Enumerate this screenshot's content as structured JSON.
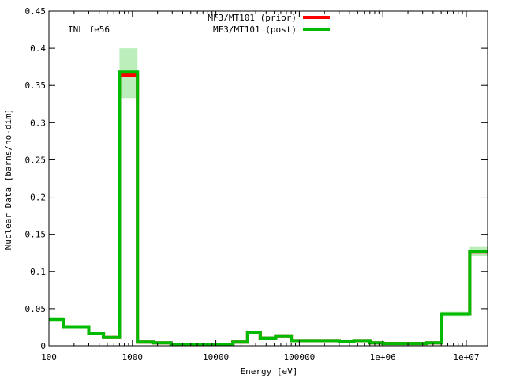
{
  "chart_data": {
    "type": "line",
    "annotation": "INL fe56",
    "xlabel": "Energy [eV]",
    "ylabel": "Nuclear Data [barns/no-dim]",
    "x_scale": "log",
    "xlim": [
      100,
      18000000
    ],
    "ylim": [
      0,
      0.45
    ],
    "x_ticks": [
      {
        "value": 100,
        "label": "100"
      },
      {
        "value": 1000,
        "label": "1000"
      },
      {
        "value": 10000,
        "label": "10000"
      },
      {
        "value": 100000,
        "label": "100000"
      },
      {
        "value": 1000000,
        "label": "1e+06"
      },
      {
        "value": 10000000,
        "label": "1e+07"
      }
    ],
    "y_ticks": [
      {
        "value": 0,
        "label": "0"
      },
      {
        "value": 0.05,
        "label": "0.05"
      },
      {
        "value": 0.1,
        "label": "0.1"
      },
      {
        "value": 0.15,
        "label": "0.15"
      },
      {
        "value": 0.2,
        "label": "0.2"
      },
      {
        "value": 0.25,
        "label": "0.25"
      },
      {
        "value": 0.3,
        "label": "0.3"
      },
      {
        "value": 0.35,
        "label": "0.35"
      },
      {
        "value": 0.4,
        "label": "0.4"
      },
      {
        "value": 0.45,
        "label": "0.45"
      }
    ],
    "grid": false,
    "legend_position": "top-center",
    "bin_edges": [
      100,
      150,
      300,
      450,
      700,
      1150,
      1800,
      2900,
      4500,
      6800,
      11000,
      16000,
      24000,
      34000,
      52000,
      80000,
      120000,
      200000,
      300000,
      450000,
      700000,
      1000000,
      1400000,
      2200000,
      3300000,
      5000000,
      7500000,
      11000000,
      18000000
    ],
    "series": [
      {
        "name": "MF3/MT101 (prior)",
        "color": "#ff0000",
        "values": [
          0.035,
          0.025,
          0.017,
          0.012,
          0.364,
          0.005,
          0.004,
          0.002,
          0.002,
          0.002,
          0.002,
          0.005,
          0.018,
          0.01,
          0.013,
          0.007,
          0.007,
          0.007,
          0.006,
          0.007,
          0.004,
          0.003,
          0.003,
          0.003,
          0.004,
          0.043,
          0.043,
          0.126
        ]
      },
      {
        "name": "MF3/MT101 (post)",
        "color": "#00bb00",
        "band_color": "#bbeebb",
        "values": [
          0.035,
          0.025,
          0.017,
          0.012,
          0.368,
          0.005,
          0.004,
          0.002,
          0.002,
          0.002,
          0.002,
          0.005,
          0.018,
          0.01,
          0.013,
          0.007,
          0.007,
          0.007,
          0.006,
          0.007,
          0.004,
          0.003,
          0.003,
          0.003,
          0.004,
          0.043,
          0.043,
          0.127
        ],
        "lower": [
          0.032,
          0.024,
          0.016,
          0.011,
          0.333,
          0.004,
          0.003,
          0.002,
          0.002,
          0.002,
          0.002,
          0.004,
          0.016,
          0.009,
          0.012,
          0.006,
          0.006,
          0.006,
          0.005,
          0.006,
          0.003,
          0.002,
          0.002,
          0.002,
          0.003,
          0.04,
          0.04,
          0.121
        ],
        "upper": [
          0.039,
          0.027,
          0.018,
          0.013,
          0.4,
          0.006,
          0.005,
          0.003,
          0.003,
          0.003,
          0.003,
          0.006,
          0.02,
          0.011,
          0.014,
          0.008,
          0.008,
          0.008,
          0.007,
          0.008,
          0.005,
          0.004,
          0.004,
          0.004,
          0.005,
          0.046,
          0.046,
          0.133
        ]
      }
    ]
  }
}
